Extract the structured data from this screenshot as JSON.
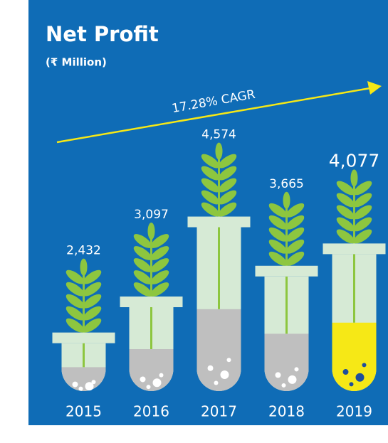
{
  "chart_data": {
    "type": "bar",
    "title": "Net Profit",
    "subtitle": "(₹ Million)",
    "annotation": "17.28% CAGR",
    "categories": [
      "2015",
      "2016",
      "2017",
      "2018",
      "2019"
    ],
    "values": [
      2432,
      3097,
      4574,
      3665,
      4077
    ],
    "value_labels": [
      "2,432",
      "3,097",
      "4,574",
      "3,665",
      "4,077"
    ],
    "color": "#d6ead5",
    "liquid_colors": [
      "#bfbfbf",
      "#bfbfbf",
      "#bfbfbf",
      "#bfbfbf",
      "#f6e816"
    ],
    "label_colors": [
      "#ffffff",
      "#ffffff",
      "#ffffff",
      "#ffffff",
      "#f6e816"
    ],
    "background": "#0f6cb6",
    "ylim": [
      1350,
      6000
    ]
  }
}
